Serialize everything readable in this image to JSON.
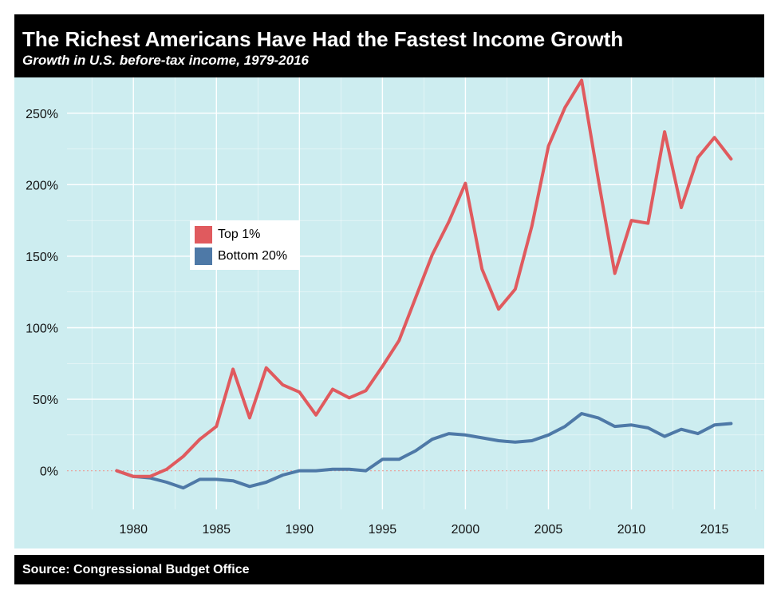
{
  "header": {
    "title": "The Richest Americans Have Had the Fastest Income Growth",
    "subtitle": "Growth in U.S. before-tax income, 1979-2016"
  },
  "footer": {
    "source": "Source: Congressional Budget Office"
  },
  "colors": {
    "top1": "#e05a5e",
    "bottom20": "#4e79a7",
    "panel_bg": "#cdedf0",
    "grid": "#ffffff",
    "zero_line": "#e8a59f"
  },
  "chart_data": {
    "type": "line",
    "title": "The Richest Americans Have Had the Fastest Income Growth",
    "subtitle": "Growth in U.S. before-tax income, 1979-2016",
    "xlabel": "",
    "ylabel": "",
    "xlim": [
      1976,
      2018
    ],
    "ylim": [
      -27,
      275
    ],
    "x_ticks": [
      1980,
      1985,
      1990,
      1995,
      2000,
      2005,
      2010,
      2015
    ],
    "y_ticks": [
      0,
      50,
      100,
      150,
      200,
      250
    ],
    "y_tick_labels": [
      "0%",
      "50%",
      "100%",
      "150%",
      "200%",
      "250%"
    ],
    "grid": true,
    "legend": "upper-left-inside",
    "x": [
      1979,
      1980,
      1981,
      1982,
      1983,
      1984,
      1985,
      1986,
      1987,
      1988,
      1989,
      1990,
      1991,
      1992,
      1993,
      1994,
      1995,
      1996,
      1997,
      1998,
      1999,
      2000,
      2001,
      2002,
      2003,
      2004,
      2005,
      2006,
      2007,
      2008,
      2009,
      2010,
      2011,
      2012,
      2013,
      2014,
      2015,
      2016
    ],
    "series": [
      {
        "name": "Top 1%",
        "values": [
          0,
          -4,
          -4,
          1,
          10,
          22,
          31,
          71,
          37,
          72,
          60,
          55,
          39,
          57,
          51,
          56,
          73,
          91,
          121,
          151,
          174,
          201,
          141,
          113,
          127,
          171,
          227,
          254,
          273,
          204,
          138,
          175,
          173,
          237,
          184,
          219,
          233,
          218
        ]
      },
      {
        "name": "Bottom 20%",
        "values": [
          0,
          -4,
          -5,
          -8,
          -12,
          -6,
          -6,
          -7,
          -11,
          -8,
          -3,
          0,
          0,
          1,
          1,
          0,
          8,
          8,
          14,
          22,
          26,
          25,
          23,
          21,
          20,
          21,
          25,
          31,
          40,
          37,
          31,
          32,
          30,
          24,
          29,
          26,
          32,
          33
        ]
      }
    ]
  }
}
